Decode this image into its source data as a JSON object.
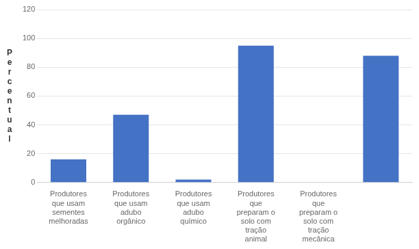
{
  "chart_data": {
    "type": "bar",
    "categories": [
      "Produtores\nque usam\nsementes\nmelhoradas",
      "Produtores\nque usam\nadubo\norgânico",
      "Produtores\nque usam\nadubo\nquímico",
      "Produtores\nque\npreparam o\nsolo com\ntração\nanimal",
      "Produtores\nque\npreparam o\nsolo com\ntração\nmecânica",
      null
    ],
    "values": [
      16,
      47,
      2,
      95,
      0,
      88
    ],
    "color": "#4472C4",
    "ylabel": "Percentual",
    "ylim": [
      0,
      120
    ],
    "yticks": [
      0,
      20,
      40,
      60,
      80,
      100,
      120
    ],
    "grid": true
  }
}
